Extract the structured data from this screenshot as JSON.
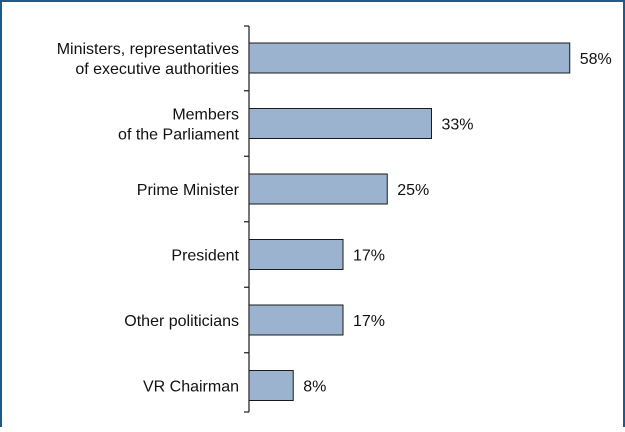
{
  "chart_data": {
    "type": "bar",
    "orientation": "horizontal",
    "categories": [
      [
        "Ministers, representatives",
        "of executive authorities"
      ],
      [
        "Members",
        "of the Parliament"
      ],
      [
        "Prime Minister"
      ],
      [
        "President"
      ],
      [
        "Other politicians"
      ],
      [
        "VR Chairman"
      ]
    ],
    "values": [
      58,
      33,
      25,
      17,
      17,
      8
    ],
    "value_labels": [
      "58%",
      "33%",
      "25%",
      "17%",
      "17%",
      "8%"
    ],
    "xlim": [
      0,
      100
    ],
    "grid": false,
    "legend": "none",
    "colors": {
      "bar_fill": "#9bb3cf",
      "bar_stroke": "#1a1a1a",
      "frame": "#1f5a8a",
      "axis": "#1a1a1a",
      "text": "#111111"
    }
  }
}
